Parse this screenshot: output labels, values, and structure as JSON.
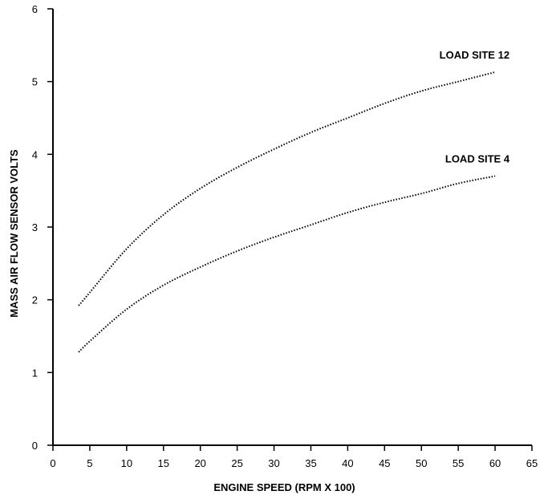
{
  "chart_data": {
    "type": "line",
    "xlabel": "ENGINE SPEED (RPM X 100)",
    "ylabel": "MASS AIR FLOW SENSOR VOLTS",
    "xlim": [
      0,
      65
    ],
    "ylim": [
      0,
      6
    ],
    "x_ticks": [
      "0",
      "5",
      "10",
      "15",
      "20",
      "25",
      "30",
      "35",
      "40",
      "45",
      "50",
      "55",
      "60",
      "65"
    ],
    "y_ticks": [
      "0",
      "1",
      "2",
      "3",
      "4",
      "5",
      "6"
    ],
    "grid": false,
    "series": [
      {
        "name": "LOAD SITE 12",
        "x": [
          3.5,
          5,
          10,
          15,
          20,
          25,
          30,
          35,
          40,
          45,
          50,
          55,
          60
        ],
        "y": [
          1.92,
          2.1,
          2.7,
          3.17,
          3.53,
          3.82,
          4.07,
          4.3,
          4.5,
          4.7,
          4.87,
          5.0,
          5.13
        ]
      },
      {
        "name": "LOAD SITE 4",
        "x": [
          3.5,
          5,
          10,
          15,
          20,
          25,
          30,
          35,
          40,
          45,
          50,
          55,
          60
        ],
        "y": [
          1.28,
          1.43,
          1.87,
          2.2,
          2.45,
          2.67,
          2.86,
          3.03,
          3.2,
          3.34,
          3.46,
          3.6,
          3.7
        ]
      }
    ]
  }
}
